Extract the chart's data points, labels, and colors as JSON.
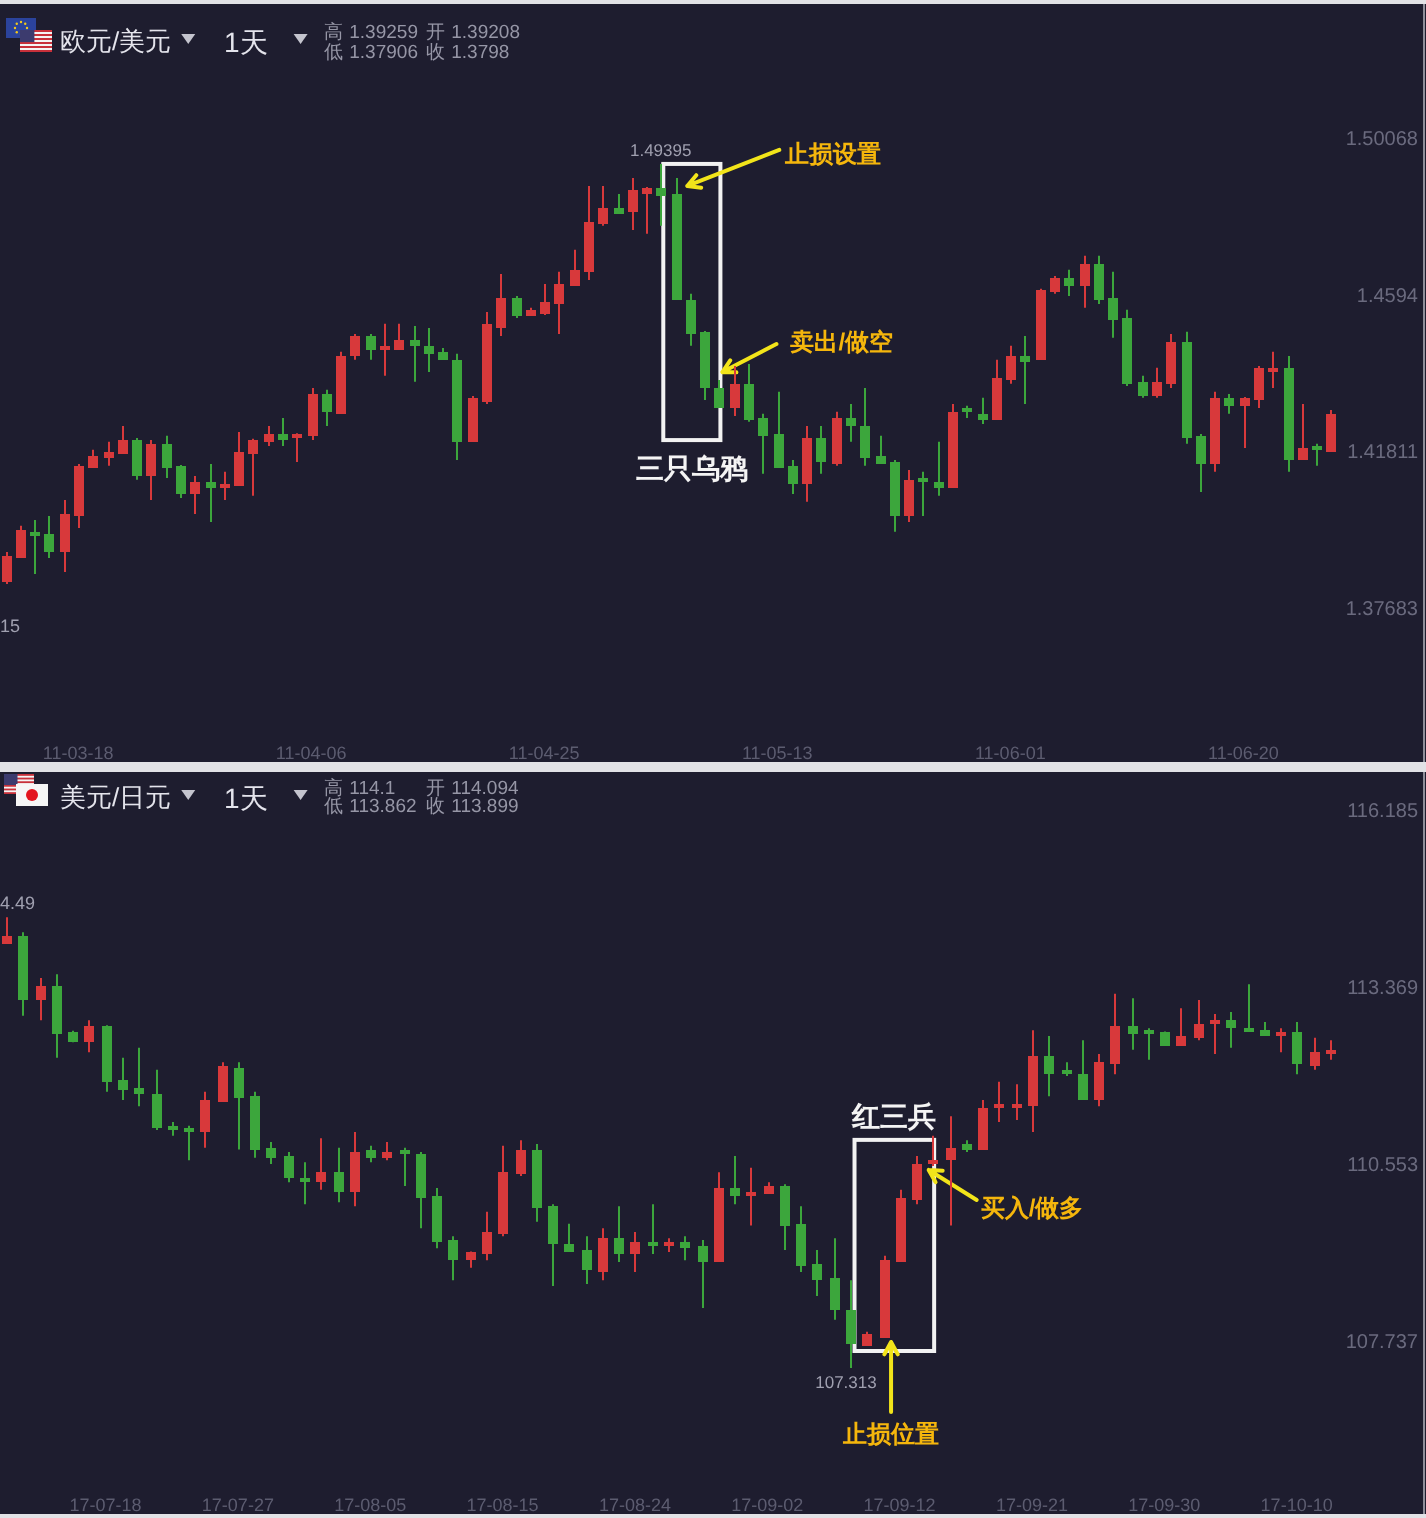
{
  "chart_data": [
    {
      "type": "candlestick",
      "title": "欧元/美元",
      "subtitle": "1天",
      "categories": [
        null,
        null,
        null,
        null,
        null,
        "11-03-18",
        null,
        null,
        null,
        null,
        null,
        null,
        null,
        null,
        null,
        null,
        null,
        null,
        null,
        null,
        null,
        "11-04-06",
        null,
        null,
        null,
        null,
        null,
        null,
        null,
        null,
        null,
        null,
        null,
        null,
        null,
        null,
        null,
        "11-04-25",
        null,
        null,
        null,
        null,
        null,
        null,
        null,
        null,
        null,
        null,
        null,
        null,
        null,
        null,
        null,
        "11-05-13",
        null,
        null,
        null,
        null,
        null,
        null,
        null,
        null,
        null,
        null,
        null,
        null,
        null,
        null,
        null,
        "11-06-01",
        null,
        null,
        null,
        null,
        null,
        null,
        null,
        null,
        null,
        null,
        null,
        null,
        null,
        null,
        null,
        "11-06-20",
        null,
        null,
        null,
        null,
        null,
        null
      ],
      "ohlc": [
        [
          1.3844,
          1.3918,
          1.3834,
          1.3908
        ],
        [
          1.3908,
          1.3987,
          1.3902,
          1.3976
        ],
        [
          1.3973,
          1.4002,
          1.386,
          1.3965
        ],
        [
          1.3965,
          1.4013,
          1.3902,
          1.3923
        ],
        [
          1.3923,
          1.4055,
          1.3865,
          1.4018
        ],
        [
          1.4018,
          1.415,
          1.3981,
          1.4145
        ],
        [
          1.4145,
          1.4187,
          1.4142,
          1.4171
        ],
        [
          1.4171,
          1.4208,
          1.4145,
          1.4181
        ],
        [
          1.4181,
          1.425,
          1.4176,
          1.4213
        ],
        [
          1.4213,
          1.4218,
          1.4108,
          1.4124
        ],
        [
          1.4124,
          1.4213,
          1.4055,
          1.4203
        ],
        [
          1.4203,
          1.4224,
          1.4113,
          1.4145
        ],
        [
          1.4145,
          1.4147,
          1.406,
          1.4076
        ],
        [
          1.4076,
          1.4118,
          1.4018,
          1.4102
        ],
        [
          1.4102,
          1.415,
          1.3997,
          1.4092
        ],
        [
          1.4092,
          1.4129,
          1.4055,
          1.4097
        ],
        [
          1.4097,
          1.4234,
          1.4095,
          1.4181
        ],
        [
          1.4181,
          1.4216,
          1.4066,
          1.4213
        ],
        [
          1.4213,
          1.425,
          1.4197,
          1.4229
        ],
        [
          1.4229,
          1.4271,
          1.4197,
          1.4218
        ],
        [
          1.4224,
          1.4231,
          1.4155,
          1.4229
        ],
        [
          1.4229,
          1.435,
          1.4213,
          1.4334
        ],
        [
          1.4334,
          1.4345,
          1.425,
          1.4292
        ],
        [
          1.4287,
          1.4445,
          1.4282,
          1.4434
        ],
        [
          1.444,
          1.4492,
          1.4424,
          1.4487
        ],
        [
          1.4487,
          1.4492,
          1.4424,
          1.4455
        ],
        [
          1.4455,
          1.4519,
          1.4382,
          1.4461
        ],
        [
          1.4455,
          1.4519,
          1.4453,
          1.4476
        ],
        [
          1.4476,
          1.4513,
          1.4366,
          1.4466
        ],
        [
          1.4461,
          1.4508,
          1.4392,
          1.4445
        ],
        [
          1.4445,
          1.4455,
          1.4424,
          1.4429
        ],
        [
          1.4424,
          1.444,
          1.416,
          1.4213
        ],
        [
          1.4213,
          1.4329,
          1.4208,
          1.4324
        ],
        [
          1.4318,
          1.455,
          1.4308,
          1.4519
        ],
        [
          1.4513,
          1.465,
          1.4487,
          1.4587
        ],
        [
          1.4587,
          1.4592,
          1.4534,
          1.4545
        ],
        [
          1.4545,
          1.4561,
          1.4542,
          1.4556
        ],
        [
          1.455,
          1.4624,
          1.4542,
          1.4577
        ],
        [
          1.4577,
          1.4656,
          1.4492,
          1.4624
        ],
        [
          1.4624,
          1.4714,
          1.4621,
          1.4661
        ],
        [
          1.4661,
          1.4882,
          1.4634,
          1.4787
        ],
        [
          1.4787,
          1.4882,
          1.4777,
          1.4824
        ],
        [
          1.4824,
          1.4861,
          1.4811,
          1.4814
        ],
        [
          1.4819,
          1.4903,
          1.4766,
          1.4872
        ],
        [
          1.4866,
          1.4879,
          1.4756,
          1.4877
        ],
        [
          1.4877,
          1.49395,
          1.4777,
          1.4861
        ],
        [
          1.4861,
          1.4903,
          1.4582,
          1.4587
        ],
        [
          1.4582,
          1.4598,
          1.4461,
          1.4498
        ],
        [
          1.4498,
          1.45,
          1.4318,
          1.4355
        ],
        [
          1.435,
          1.4371,
          1.4297,
          1.4303
        ],
        [
          1.4303,
          1.4408,
          1.4276,
          1.4361
        ],
        [
          1.4361,
          1.4413,
          1.4261,
          1.4271
        ],
        [
          1.4271,
          1.4282,
          1.4124,
          1.4229
        ],
        [
          1.4229,
          1.434,
          1.4139,
          1.4145
        ],
        [
          1.4145,
          1.416,
          1.4071,
          1.4102
        ],
        [
          1.4102,
          1.425,
          1.405,
          1.4218
        ],
        [
          1.4218,
          1.425,
          1.4124,
          1.416
        ],
        [
          1.4155,
          1.4287,
          1.4145,
          1.4271
        ],
        [
          1.4271,
          1.4308,
          1.4208,
          1.4255
        ],
        [
          1.425,
          1.435,
          1.4145,
          1.4171
        ],
        [
          1.4171,
          1.4224,
          1.415,
          1.4155
        ],
        [
          1.4155,
          1.416,
          1.3971,
          1.4018
        ],
        [
          1.4018,
          1.4134,
          1.3997,
          1.4108
        ],
        [
          1.4113,
          1.4129,
          1.4013,
          1.4108
        ],
        [
          1.4102,
          1.4208,
          1.4066,
          1.4092
        ],
        [
          1.4092,
          1.4308,
          1.4087,
          1.4287
        ],
        [
          1.4297,
          1.4303,
          1.4271,
          1.4292
        ],
        [
          1.4282,
          1.4324,
          1.4255,
          1.4271
        ],
        [
          1.4271,
          1.4424,
          1.4268,
          1.4376
        ],
        [
          1.4376,
          1.4461,
          1.4361,
          1.4434
        ],
        [
          1.4434,
          1.4487,
          1.4308,
          1.4424
        ],
        [
          1.4429,
          1.4611,
          1.4426,
          1.4608
        ],
        [
          1.4608,
          1.4645,
          1.4598,
          1.464
        ],
        [
          1.464,
          1.4661,
          1.4592,
          1.4624
        ],
        [
          1.4624,
          1.4698,
          1.4561,
          1.4677
        ],
        [
          1.4677,
          1.4698,
          1.4571,
          1.4587
        ],
        [
          1.4587,
          1.4656,
          1.4482,
          1.4534
        ],
        [
          1.4534,
          1.4556,
          1.4355,
          1.4366
        ],
        [
          1.4366,
          1.4382,
          1.4324,
          1.4334
        ],
        [
          1.4334,
          1.4403,
          1.4324,
          1.4366
        ],
        [
          1.4366,
          1.4492,
          1.435,
          1.4471
        ],
        [
          1.4471,
          1.4498,
          1.4203,
          1.4224
        ],
        [
          1.4224,
          1.4229,
          1.4076,
          1.4155
        ],
        [
          1.4155,
          1.434,
          1.4129,
          1.4324
        ],
        [
          1.4324,
          1.4334,
          1.4282,
          1.4308
        ],
        [
          1.4308,
          1.4326,
          1.4192,
          1.4324
        ],
        [
          1.4324,
          1.4408,
          1.4297,
          1.4403
        ],
        [
          1.4401,
          1.4445,
          1.435,
          1.4404
        ],
        [
          1.4403,
          1.4434,
          1.4129,
          1.4166
        ],
        [
          1.4166,
          1.4308,
          1.4163,
          1.4192
        ],
        [
          1.4197,
          1.4203,
          1.4145,
          1.4192
        ],
        [
          1.4187,
          1.4292,
          1.4181,
          1.4282
        ]
      ],
      "colors": [
        "#d8393b",
        "#d8393b",
        "#3ca63c",
        "#3ca63c",
        "#d8393b",
        "#d8393b",
        "#d8393b",
        "#d8393b",
        "#d8393b",
        "#3ca63c",
        "#d8393b",
        "#3ca63c",
        "#3ca63c",
        "#d8393b",
        "#3ca63c",
        "#d8393b",
        "#d8393b",
        "#d8393b",
        "#d8393b",
        "#3ca63c",
        "#d8393b",
        "#d8393b",
        "#3ca63c",
        "#d8393b",
        "#d8393b",
        "#3ca63c",
        "#d8393b",
        "#d8393b",
        "#3ca63c",
        "#3ca63c",
        "#3ca63c",
        "#3ca63c",
        "#d8393b",
        "#d8393b",
        "#d8393b",
        "#3ca63c",
        "#d8393b",
        "#d8393b",
        "#d8393b",
        "#d8393b",
        "#d8393b",
        "#d8393b",
        "#3ca63c",
        "#d8393b",
        "#d8393b",
        "#3ca63c",
        "#3ca63c",
        "#3ca63c",
        "#3ca63c",
        "#3ca63c",
        "#d8393b",
        "#3ca63c",
        "#3ca63c",
        "#3ca63c",
        "#3ca63c",
        "#d8393b",
        "#3ca63c",
        "#d8393b",
        "#3ca63c",
        "#3ca63c",
        "#3ca63c",
        "#3ca63c",
        "#d8393b",
        "#3ca63c",
        "#3ca63c",
        "#d8393b",
        "#3ca63c",
        "#3ca63c",
        "#d8393b",
        "#d8393b",
        "#3ca63c",
        "#d8393b",
        "#d8393b",
        "#3ca63c",
        "#d8393b",
        "#3ca63c",
        "#3ca63c",
        "#3ca63c",
        "#3ca63c",
        "#d8393b",
        "#d8393b",
        "#3ca63c",
        "#3ca63c",
        "#d8393b",
        "#3ca63c",
        "#d8393b",
        "#d8393b",
        "#d8393b",
        "#3ca63c",
        "#d8393b",
        "#3ca63c",
        "#d8393b"
      ],
      "ylim": [
        1.3365,
        1.5361
      ],
      "yticks": [
        1.50068,
        1.4594,
        1.41811,
        1.37683
      ],
      "annotations": [
        "高 1.39259",
        "开 1.39208",
        "低 1.37906",
        "收 1.3798",
        {
          "text": "1.49395",
          "y": 1.49395
        },
        "15",
        "止损设置",
        "卖出/做空",
        "三只乌鸦"
      ]
    },
    {
      "type": "candlestick",
      "title": "美元/日元",
      "subtitle": "1天",
      "categories": [
        null,
        null,
        null,
        null,
        null,
        null,
        "17-07-18",
        null,
        null,
        null,
        null,
        null,
        null,
        null,
        "17-07-27",
        null,
        null,
        null,
        null,
        null,
        null,
        null,
        "17-08-05",
        null,
        null,
        null,
        null,
        null,
        null,
        null,
        "17-08-15",
        null,
        null,
        null,
        null,
        null,
        null,
        null,
        "17-08-24",
        null,
        null,
        null,
        null,
        null,
        null,
        null,
        "17-09-02",
        null,
        null,
        null,
        null,
        null,
        null,
        null,
        "17-09-12",
        null,
        null,
        null,
        null,
        null,
        null,
        null,
        "17-09-21",
        null,
        null,
        null,
        null,
        null,
        null,
        null,
        "17-09-30",
        null,
        null,
        null,
        null,
        null,
        null,
        null,
        "17-10-10",
        null,
        null
      ],
      "ohlc": [
        [
          114.09,
          114.49,
          114.08,
          114.19
        ],
        [
          114.19,
          114.25,
          112.92,
          113.2
        ],
        [
          113.2,
          113.52,
          112.85,
          113.39
        ],
        [
          113.39,
          113.58,
          112.25,
          112.66
        ],
        [
          112.66,
          112.68,
          112.5,
          112.53
        ],
        [
          112.53,
          112.85,
          112.34,
          112.76
        ],
        [
          112.76,
          112.77,
          111.71,
          111.9
        ],
        [
          111.9,
          112.25,
          111.58,
          111.77
        ],
        [
          111.77,
          112.41,
          111.48,
          111.71
        ],
        [
          111.67,
          112.06,
          111.1,
          111.17
        ],
        [
          111.17,
          111.23,
          111.01,
          111.13
        ],
        [
          111.13,
          111.17,
          110.62,
          111.1
        ],
        [
          111.1,
          111.71,
          110.82,
          111.58
        ],
        [
          111.58,
          112.18,
          111.56,
          112.12
        ],
        [
          112.09,
          112.18,
          110.79,
          111.64
        ],
        [
          111.64,
          111.71,
          110.66,
          110.82
        ],
        [
          110.82,
          110.91,
          110.56,
          110.69
        ],
        [
          110.69,
          110.75,
          110.27,
          110.37
        ],
        [
          110.34,
          110.59,
          109.92,
          110.31
        ],
        [
          110.31,
          110.97,
          110.15,
          110.43
        ],
        [
          110.43,
          110.82,
          109.95,
          110.15
        ],
        [
          110.15,
          111.07,
          109.89,
          110.75
        ],
        [
          110.79,
          110.85,
          110.59,
          110.69
        ],
        [
          110.69,
          110.91,
          110.62,
          110.75
        ],
        [
          110.79,
          110.82,
          110.21,
          110.75
        ],
        [
          110.72,
          110.75,
          109.54,
          110.05
        ],
        [
          110.05,
          110.18,
          109.22,
          109.35
        ],
        [
          109.35,
          109.41,
          108.71,
          109.06
        ],
        [
          109.06,
          109.17,
          108.91,
          109.16
        ],
        [
          109.16,
          109.8,
          109.03,
          109.48
        ],
        [
          109.48,
          110.85,
          109.41,
          110.43
        ],
        [
          110.43,
          110.94,
          110.37,
          110.79
        ],
        [
          110.79,
          110.88,
          109.64,
          109.89
        ],
        [
          109.89,
          109.92,
          108.62,
          109.32
        ],
        [
          109.28,
          109.61,
          109.16,
          109.19
        ],
        [
          109.19,
          109.41,
          108.65,
          108.91
        ],
        [
          108.87,
          109.54,
          108.71,
          109.38
        ],
        [
          109.38,
          109.89,
          109.0,
          109.16
        ],
        [
          109.16,
          109.48,
          108.84,
          109.32
        ],
        [
          109.32,
          109.92,
          109.13,
          109.28
        ],
        [
          109.28,
          109.38,
          109.16,
          109.32
        ],
        [
          109.32,
          109.41,
          109.03,
          109.25
        ],
        [
          109.25,
          109.35,
          108.27,
          109.03
        ],
        [
          109.03,
          110.43,
          109.01,
          110.18
        ],
        [
          110.18,
          110.69,
          109.92,
          110.08
        ],
        [
          110.08,
          110.5,
          109.58,
          110.11
        ],
        [
          110.11,
          110.27,
          110.1,
          110.21
        ],
        [
          110.21,
          110.24,
          109.19,
          109.61
        ],
        [
          109.61,
          109.89,
          108.84,
          108.97
        ],
        [
          108.97,
          109.19,
          108.46,
          108.75
        ],
        [
          108.75,
          109.38,
          108.08,
          108.27
        ],
        [
          108.24,
          108.71,
          107.313,
          107.73
        ],
        [
          107.7,
          107.89,
          107.68,
          107.85
        ],
        [
          107.82,
          109.1,
          107.79,
          109.03
        ],
        [
          109.03,
          110.15,
          109.01,
          110.02
        ],
        [
          110.02,
          110.69,
          109.92,
          110.56
        ],
        [
          110.59,
          111.01,
          110.53,
          110.62
        ],
        [
          110.66,
          111.32,
          109.58,
          110.82
        ],
        [
          110.88,
          110.94,
          110.75,
          110.82
        ],
        [
          110.82,
          111.58,
          110.8,
          111.45
        ],
        [
          111.48,
          111.87,
          111.23,
          111.51
        ],
        [
          111.48,
          111.83,
          111.26,
          111.51
        ],
        [
          111.51,
          112.69,
          111.07,
          112.28
        ],
        [
          112.28,
          112.6,
          111.64,
          112.02
        ],
        [
          112.06,
          112.18,
          111.96,
          112.02
        ],
        [
          111.99,
          112.53,
          111.58,
          111.61
        ],
        [
          111.61,
          112.31,
          111.48,
          112.18
        ],
        [
          112.18,
          113.27,
          111.99,
          112.76
        ],
        [
          112.76,
          113.2,
          112.38,
          112.66
        ],
        [
          112.7,
          112.72,
          112.22,
          112.66
        ],
        [
          112.66,
          112.67,
          112.44,
          112.47
        ],
        [
          112.47,
          113.04,
          112.44,
          112.6
        ],
        [
          112.6,
          113.17,
          112.53,
          112.79
        ],
        [
          112.82,
          112.95,
          112.31,
          112.85
        ],
        [
          112.85,
          112.98,
          112.41,
          112.76
        ],
        [
          112.72,
          113.42,
          112.66,
          112.69
        ],
        [
          112.69,
          112.82,
          112.61,
          112.63
        ],
        [
          112.63,
          112.72,
          112.34,
          112.66
        ],
        [
          112.66,
          112.82,
          111.99,
          112.18
        ],
        [
          112.15,
          112.57,
          112.06,
          112.34
        ],
        [
          112.34,
          112.53,
          112.22,
          112.38
        ]
      ],
      "colors": [
        "#d8393b",
        "#3ca63c",
        "#d8393b",
        "#3ca63c",
        "#3ca63c",
        "#d8393b",
        "#3ca63c",
        "#3ca63c",
        "#3ca63c",
        "#3ca63c",
        "#3ca63c",
        "#3ca63c",
        "#d8393b",
        "#d8393b",
        "#3ca63c",
        "#3ca63c",
        "#3ca63c",
        "#3ca63c",
        "#3ca63c",
        "#d8393b",
        "#3ca63c",
        "#d8393b",
        "#3ca63c",
        "#d8393b",
        "#3ca63c",
        "#3ca63c",
        "#3ca63c",
        "#3ca63c",
        "#d8393b",
        "#d8393b",
        "#d8393b",
        "#d8393b",
        "#3ca63c",
        "#3ca63c",
        "#3ca63c",
        "#3ca63c",
        "#d8393b",
        "#3ca63c",
        "#d8393b",
        "#3ca63c",
        "#d8393b",
        "#3ca63c",
        "#3ca63c",
        "#d8393b",
        "#3ca63c",
        "#d8393b",
        "#d8393b",
        "#3ca63c",
        "#3ca63c",
        "#3ca63c",
        "#3ca63c",
        "#3ca63c",
        "#d8393b",
        "#d8393b",
        "#d8393b",
        "#d8393b",
        "#d8393b",
        "#d8393b",
        "#3ca63c",
        "#d8393b",
        "#d8393b",
        "#d8393b",
        "#d8393b",
        "#3ca63c",
        "#3ca63c",
        "#3ca63c",
        "#d8393b",
        "#d8393b",
        "#3ca63c",
        "#3ca63c",
        "#3ca63c",
        "#d8393b",
        "#d8393b",
        "#d8393b",
        "#3ca63c",
        "#3ca63c",
        "#3ca63c",
        "#d8393b",
        "#3ca63c",
        "#d8393b",
        "#d8393b"
      ],
      "ylim": [
        104.99,
        116.8
      ],
      "yticks": [
        116.185,
        113.369,
        110.553,
        107.737
      ],
      "annotations": [
        "高 114.1",
        "开 114.094",
        "低 113.862",
        "收 113.899",
        "4.49",
        {
          "text": "107.313",
          "y": 107.313
        },
        "红三兵",
        "买入/做多",
        "止损位置"
      ]
    }
  ]
}
